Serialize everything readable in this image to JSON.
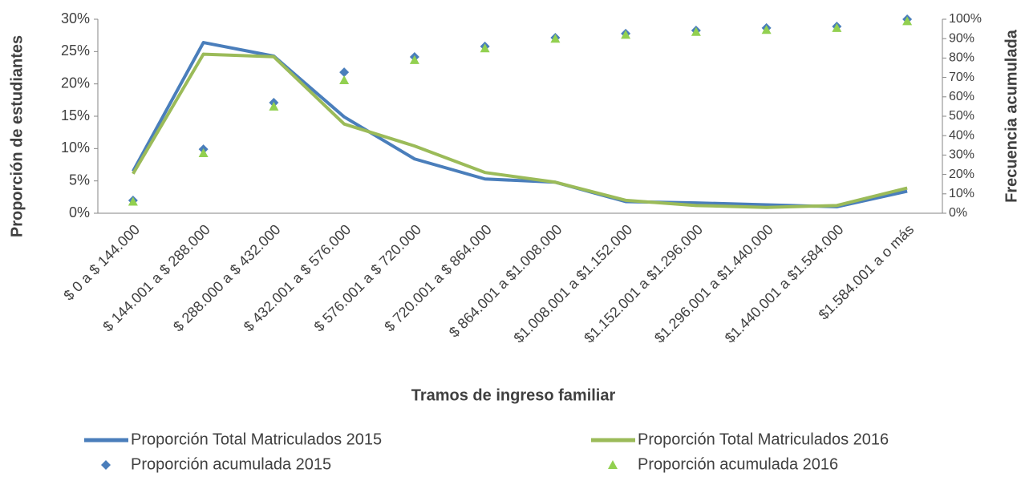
{
  "chart_data": {
    "type": "line",
    "x_label": "Tramos de ingreso familiar",
    "y_label": "Proporción de estudiantes",
    "y2_label": "Frecuencia acumulada",
    "categories": [
      "$ 0 a $ 144.000",
      "$ 144.001 a $ 288.000",
      "$ 288.000 a $ 432.000",
      "$ 432.001 a $ 576.000",
      "$ 576.001 a $ 720.000",
      "$ 720.001 a $ 864.000",
      "$ 864.001 a $1.008.000",
      "$1.008.001 a $1.152.000",
      "$1.152.001 a $1.296.000",
      "$1.296.001 a $1.440.000",
      "$1.440.001 a $1.584.000",
      "$1.584.001 a o más"
    ],
    "series": [
      {
        "name": "Proporción Total Matriculados 2015",
        "color": "#4a7ebb",
        "marker": "line",
        "values": [
          6.5,
          26.4,
          24.3,
          14.9,
          8.4,
          5.3,
          4.8,
          1.8,
          1.6,
          1.3,
          1.0,
          3.4
        ]
      },
      {
        "name": "Proporción Total Matriculados 2016",
        "color": "#9bbb59",
        "marker": "line",
        "values": [
          6.1,
          24.6,
          24.2,
          13.8,
          10.4,
          6.3,
          4.8,
          2.0,
          1.2,
          0.9,
          1.2,
          3.9
        ]
      },
      {
        "name": "Proporción acumulada 2015",
        "color": "#4a7ebb",
        "marker": "diamond",
        "axis": "y2",
        "values": [
          6.6,
          33,
          57,
          72.7,
          80.6,
          86,
          90.5,
          92.6,
          94.2,
          95.5,
          96.3,
          100
        ]
      },
      {
        "name": "Proporción acumulada 2016",
        "color": "#92d050",
        "marker": "triangle",
        "axis": "y2",
        "values": [
          6,
          31,
          55,
          68.6,
          79,
          85,
          90,
          92,
          93.5,
          94.5,
          95.5,
          99
        ]
      }
    ],
    "ylim": [
      0,
      30
    ],
    "yticks": [
      {
        "value": 0,
        "label": "0%"
      },
      {
        "value": 5,
        "label": "5%"
      },
      {
        "value": 10,
        "label": "10%"
      },
      {
        "value": 15,
        "label": "15%"
      },
      {
        "value": 20,
        "label": "20%"
      },
      {
        "value": 25,
        "label": "25%"
      },
      {
        "value": 30,
        "label": "30%"
      }
    ],
    "y2lim": [
      0,
      100
    ],
    "y2ticks": [
      {
        "value": 0,
        "label": "0%"
      },
      {
        "value": 10,
        "label": "10%"
      },
      {
        "value": 20,
        "label": "20%"
      },
      {
        "value": 30,
        "label": "30%"
      },
      {
        "value": 40,
        "label": "40%"
      },
      {
        "value": 50,
        "label": "50%"
      },
      {
        "value": 60,
        "label": "60%"
      },
      {
        "value": 70,
        "label": "70%"
      },
      {
        "value": 80,
        "label": "80%"
      },
      {
        "value": 90,
        "label": "90%"
      },
      {
        "value": 100,
        "label": "100%"
      }
    ],
    "grid": false
  }
}
